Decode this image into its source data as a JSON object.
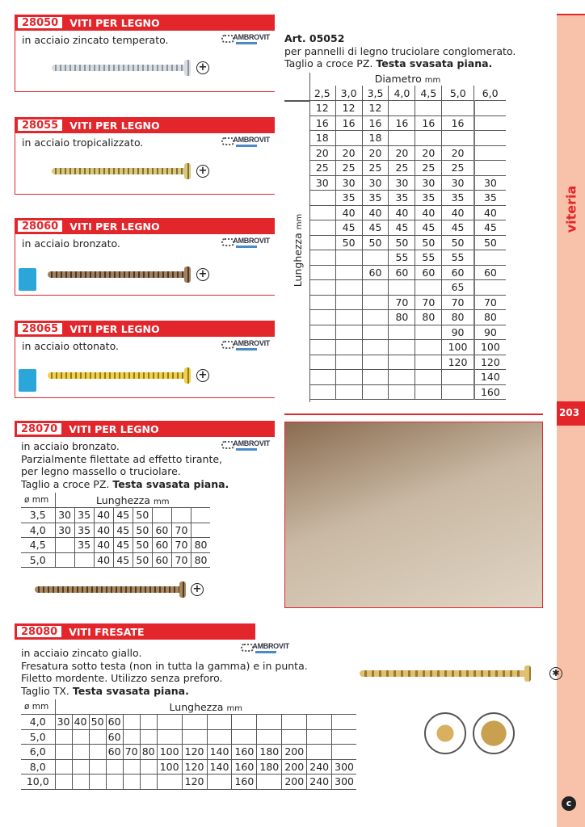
{
  "side": {
    "label": "viteria",
    "page": "203"
  },
  "brand": "AMBROVIT",
  "products": [
    {
      "code": "28050",
      "title": "VITI PER LEGNO",
      "desc": [
        "in acciaio zincato temperato."
      ]
    },
    {
      "code": "28055",
      "title": "VITI PER LEGNO",
      "desc": [
        "in acciaio tropicalizzato."
      ]
    },
    {
      "code": "28060",
      "title": "VITI PER LEGNO",
      "desc": [
        "in acciaio bronzato."
      ]
    },
    {
      "code": "28065",
      "title": "VITI PER LEGNO",
      "desc": [
        "in acciaio ottonato."
      ]
    },
    {
      "code": "28070",
      "title": "VITI PER LEGNO",
      "desc": [
        "in acciaio bronzato.",
        "Parzialmente filettate ad effetto tirante,",
        "per legno massello o truciolare.",
        "Taglio a croce PZ."
      ],
      "bold": "Testa svasata piana."
    },
    {
      "code": "28080",
      "title": "VITI FRESATE",
      "desc": [
        "in acciaio zincato giallo.",
        "Fresatura sotto testa (non in tutta la gamma) e in punta.",
        "Filetto mordente. Utilizzo senza preforo.",
        "Taglio TX."
      ],
      "bold": "Testa svasata piana."
    }
  ],
  "art": {
    "title": "Art. 05052",
    "line1": "per pannelli di legno truciolare conglomerato.",
    "line2": "Taglio a croce PZ.",
    "bold": "Testa svasata piana.",
    "col_header": "Diametro",
    "row_header": "Lunghezza",
    "unit": "mm",
    "diameters": [
      "2,5",
      "3,0",
      "3,5",
      "4,0",
      "4,5",
      "5,0",
      "6,0"
    ],
    "rows": [
      [
        "12",
        "12",
        "12",
        "",
        "",
        "",
        ""
      ],
      [
        "16",
        "16",
        "16",
        "16",
        "16",
        "16",
        ""
      ],
      [
        "18",
        "",
        "18",
        "",
        "",
        "",
        ""
      ],
      [
        "20",
        "20",
        "20",
        "20",
        "20",
        "20",
        ""
      ],
      [
        "25",
        "25",
        "25",
        "25",
        "25",
        "25",
        ""
      ],
      [
        "30",
        "30",
        "30",
        "30",
        "30",
        "30",
        "30"
      ],
      [
        "",
        "35",
        "35",
        "35",
        "35",
        "35",
        "35"
      ],
      [
        "",
        "40",
        "40",
        "40",
        "40",
        "40",
        "40"
      ],
      [
        "",
        "45",
        "45",
        "45",
        "45",
        "45",
        "45"
      ],
      [
        "",
        "50",
        "50",
        "50",
        "50",
        "50",
        "50"
      ],
      [
        "",
        "",
        "",
        "55",
        "55",
        "55",
        ""
      ],
      [
        "",
        "",
        "60",
        "60",
        "60",
        "60",
        "60"
      ],
      [
        "",
        "",
        "",
        "",
        "",
        "65",
        ""
      ],
      [
        "",
        "",
        "",
        "70",
        "70",
        "70",
        "70"
      ],
      [
        "",
        "",
        "",
        "80",
        "80",
        "80",
        "80"
      ],
      [
        "",
        "",
        "",
        "",
        "",
        "90",
        "90"
      ],
      [
        "",
        "",
        "",
        "",
        "",
        "100",
        "100"
      ],
      [
        "",
        "",
        "",
        "",
        "",
        "120",
        "120"
      ],
      [
        "",
        "",
        "",
        "",
        "",
        "",
        "140"
      ],
      [
        "",
        "",
        "",
        "",
        "",
        "",
        "160"
      ]
    ]
  },
  "table28070": {
    "dia_header": "ø mm",
    "len_header": "Lunghezza",
    "unit": "mm",
    "rows": [
      [
        "3,5",
        "30",
        "35",
        "40",
        "45",
        "50",
        "",
        "",
        ""
      ],
      [
        "4,0",
        "30",
        "35",
        "40",
        "45",
        "50",
        "60",
        "70",
        ""
      ],
      [
        "4,5",
        "",
        "35",
        "40",
        "45",
        "50",
        "60",
        "70",
        "80"
      ],
      [
        "5,0",
        "",
        "",
        "40",
        "45",
        "50",
        "60",
        "70",
        "80"
      ]
    ]
  },
  "table28080": {
    "dia_header": "ø mm",
    "len_header": "Lunghezza",
    "unit": "mm",
    "rows": [
      [
        "4,0",
        "30",
        "40",
        "50",
        "60",
        "",
        "",
        "",
        "",
        "",
        "",
        "",
        "",
        "",
        ""
      ],
      [
        "5,0",
        "",
        "",
        "",
        "60",
        "",
        "",
        "",
        "",
        "",
        "",
        "",
        "",
        "",
        ""
      ],
      [
        "6,0",
        "",
        "",
        "",
        "60",
        "70",
        "80",
        "100",
        "120",
        "140",
        "160",
        "180",
        "200",
        "",
        ""
      ],
      [
        "8,0",
        "",
        "",
        "",
        "",
        "",
        "",
        "100",
        "120",
        "140",
        "160",
        "180",
        "200",
        "240",
        "300"
      ],
      [
        "10,0",
        "",
        "",
        "",
        "",
        "",
        "",
        "",
        "120",
        "",
        "160",
        "",
        "200",
        "240",
        "300"
      ]
    ]
  }
}
